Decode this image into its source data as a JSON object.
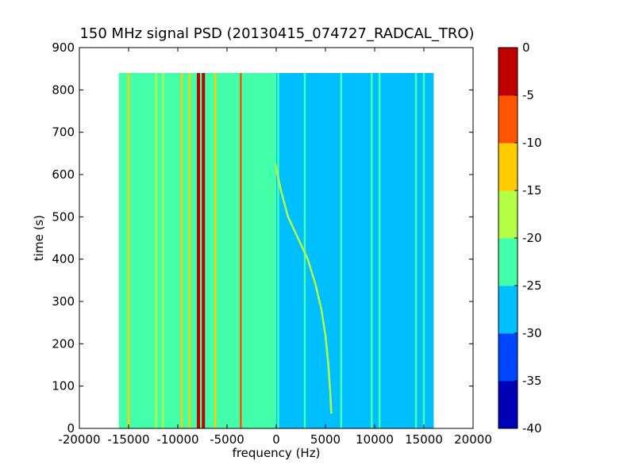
{
  "chart_data": {
    "type": "heatmap",
    "title": "150 MHz signal PSD (20130415_074727_RADCAL_TRO)",
    "xlabel": "frequency (Hz)",
    "ylabel": "time (s)",
    "xlim": [
      -20000,
      20000
    ],
    "ylim": [
      0,
      900
    ],
    "x_ticks": [
      -20000,
      -15000,
      -10000,
      -5000,
      0,
      5000,
      10000,
      15000,
      20000
    ],
    "y_ticks": [
      0,
      100,
      200,
      300,
      400,
      500,
      600,
      700,
      800,
      900
    ],
    "data_extent": {
      "x": [
        -16000,
        16000
      ],
      "y": [
        0,
        840
      ]
    },
    "background_level_left": -22,
    "background_level_right": -28,
    "colorbar": {
      "levels": [
        -40,
        -35,
        -30,
        -25,
        -20,
        -15,
        -10,
        -5,
        0
      ],
      "colors": [
        "#0000b4",
        "#0046ff",
        "#00bfff",
        "#44ffaa",
        "#b2ff46",
        "#ffcc00",
        "#ff5500",
        "#c00000"
      ],
      "tick_labels": [
        "-40",
        "-35",
        "-30",
        "-25",
        "-20",
        "-15",
        "-10",
        "-5",
        "0"
      ]
    },
    "vertical_features": [
      {
        "x": -15000,
        "level": -12
      },
      {
        "x": -12200,
        "level": -18
      },
      {
        "x": -11500,
        "level": -16
      },
      {
        "x": -9600,
        "level": -12
      },
      {
        "x": -8800,
        "level": -15
      },
      {
        "x": -7900,
        "level": -3
      },
      {
        "x": -7400,
        "level": -2
      },
      {
        "x": -6200,
        "level": -12
      },
      {
        "x": -3600,
        "level": -10
      },
      {
        "x": 200,
        "level": -24
      },
      {
        "x": 2900,
        "level": -24
      },
      {
        "x": 6600,
        "level": -24
      },
      {
        "x": 9700,
        "level": -22
      },
      {
        "x": 10500,
        "level": -22
      },
      {
        "x": 14200,
        "level": -22
      },
      {
        "x": 15000,
        "level": -24
      }
    ],
    "drifting_trace": {
      "level": -18,
      "points": [
        {
          "x": -100,
          "t": 625
        },
        {
          "x": 500,
          "t": 560
        },
        {
          "x": 1200,
          "t": 500
        },
        {
          "x": 2200,
          "t": 450
        },
        {
          "x": 3200,
          "t": 400
        },
        {
          "x": 4000,
          "t": 340
        },
        {
          "x": 4600,
          "t": 280
        },
        {
          "x": 5000,
          "t": 220
        },
        {
          "x": 5300,
          "t": 150
        },
        {
          "x": 5500,
          "t": 80
        },
        {
          "x": 5600,
          "t": 35
        }
      ]
    }
  }
}
